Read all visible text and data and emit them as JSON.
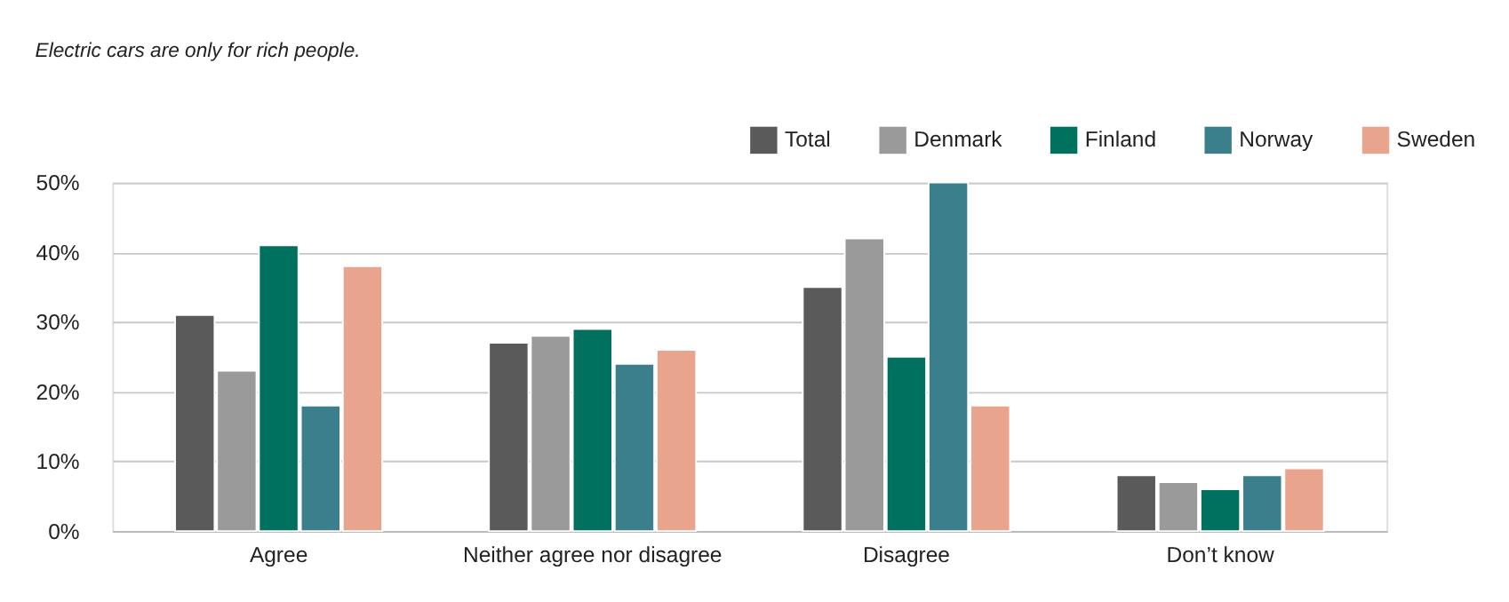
{
  "chart_data": {
    "type": "bar",
    "title": "Electric cars are only for rich people.",
    "categories": [
      "Agree",
      "Neither agree nor disagree",
      "Disagree",
      "Don’t know"
    ],
    "series": [
      {
        "name": "Total",
        "color": "#5a5a5a",
        "values": [
          31,
          27,
          35,
          8
        ]
      },
      {
        "name": "Denmark",
        "color": "#9a9a9a",
        "values": [
          23,
          28,
          42,
          7
        ]
      },
      {
        "name": "Finland",
        "color": "#00705f",
        "values": [
          41,
          29,
          25,
          6
        ]
      },
      {
        "name": "Norway",
        "color": "#3b7f8c",
        "values": [
          18,
          24,
          50,
          8
        ]
      },
      {
        "name": "Sweden",
        "color": "#e8a48c",
        "values": [
          38,
          26,
          18,
          9
        ]
      }
    ],
    "ylim": [
      0,
      50
    ],
    "yticks": [
      {
        "value": 0,
        "label": "0%"
      },
      {
        "value": 10,
        "label": "10%"
      },
      {
        "value": 20,
        "label": "20%"
      },
      {
        "value": 30,
        "label": "30%"
      },
      {
        "value": 40,
        "label": "40%"
      },
      {
        "value": 50,
        "label": "50%"
      }
    ],
    "grid": "y",
    "legend": "top right"
  }
}
